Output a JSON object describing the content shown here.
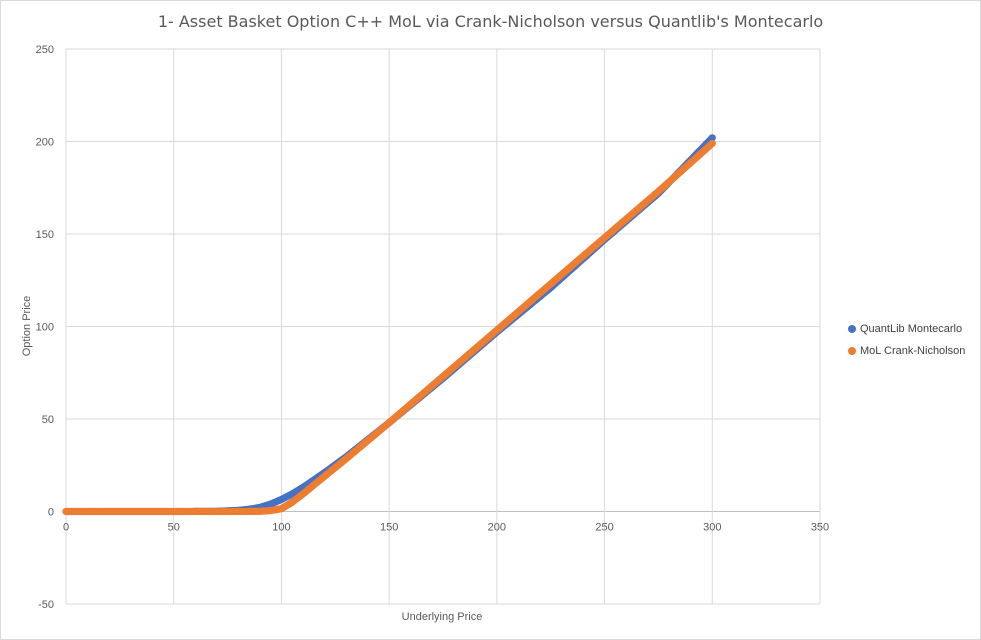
{
  "chart_data": {
    "type": "scatter",
    "title": "1- Asset Basket Option C++ MoL via Crank-Nicholson versus Quantlib's Montecarlo",
    "xlabel": "Underlying Price",
    "ylabel": "Option Price",
    "xlim": [
      0,
      350
    ],
    "ylim": [
      -50,
      250
    ],
    "xticks": [
      "0",
      "50",
      "100",
      "150",
      "200",
      "250",
      "300",
      "350"
    ],
    "yticks": [
      "250",
      "200",
      "150",
      "100",
      "50",
      "0",
      "-50"
    ],
    "grid": true,
    "legend_position": "right",
    "strike": 100,
    "x_range": [
      0,
      300
    ],
    "series": [
      {
        "name": "QuantLib Montecarlo",
        "color": "#4472c4",
        "x": [
          0,
          50,
          70,
          80,
          85,
          90,
          95,
          100,
          105,
          110,
          120,
          130,
          150,
          175,
          200,
          225,
          250,
          275,
          300
        ],
        "y": [
          0,
          0,
          0.1,
          0.6,
          1.2,
          2.2,
          4,
          6.5,
          9.5,
          13,
          21,
          29.5,
          48,
          72,
          97,
          121,
          147,
          172,
          202
        ]
      },
      {
        "name": "MoL Crank-Nicholson",
        "color": "#ed7d31",
        "x": [
          0,
          50,
          80,
          90,
          95,
          100,
          105,
          110,
          120,
          130,
          150,
          175,
          200,
          225,
          250,
          275,
          300
        ],
        "y": [
          0,
          0,
          0,
          0.1,
          0.5,
          1.5,
          5,
          9.5,
          19,
          28.5,
          48,
          73,
          98,
          123,
          148,
          173,
          199
        ]
      }
    ]
  }
}
